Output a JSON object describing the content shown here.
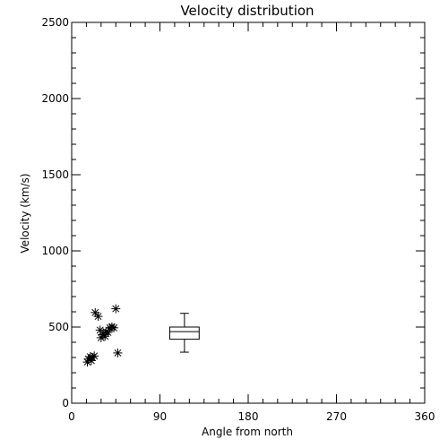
{
  "chart_data": {
    "type": "scatter",
    "title": "Velocity distribution",
    "xlabel": "Angle from north",
    "ylabel": "Velocity (km/s)",
    "xlim": [
      0,
      360
    ],
    "ylim": [
      0,
      2500
    ],
    "xticks": [
      0,
      90,
      180,
      270,
      360
    ],
    "yticks": [
      0,
      500,
      1000,
      1500,
      2000,
      2500
    ],
    "grid": false,
    "marker": "asterisk",
    "points": [
      {
        "x": 16,
        "y": 270
      },
      {
        "x": 17,
        "y": 290
      },
      {
        "x": 19,
        "y": 305
      },
      {
        "x": 20,
        "y": 280
      },
      {
        "x": 21,
        "y": 300
      },
      {
        "x": 23,
        "y": 310
      },
      {
        "x": 24,
        "y": 595
      },
      {
        "x": 27,
        "y": 570
      },
      {
        "x": 29,
        "y": 480
      },
      {
        "x": 30,
        "y": 430
      },
      {
        "x": 32,
        "y": 450
      },
      {
        "x": 34,
        "y": 440
      },
      {
        "x": 35,
        "y": 470
      },
      {
        "x": 37,
        "y": 465
      },
      {
        "x": 39,
        "y": 495
      },
      {
        "x": 41,
        "y": 500
      },
      {
        "x": 43,
        "y": 495
      },
      {
        "x": 45,
        "y": 620
      },
      {
        "x": 47,
        "y": 330
      }
    ],
    "boxplot": {
      "x": 115,
      "width_deg": 30,
      "min": 335,
      "q1": 420,
      "median": 470,
      "q3": 500,
      "max": 590
    }
  }
}
